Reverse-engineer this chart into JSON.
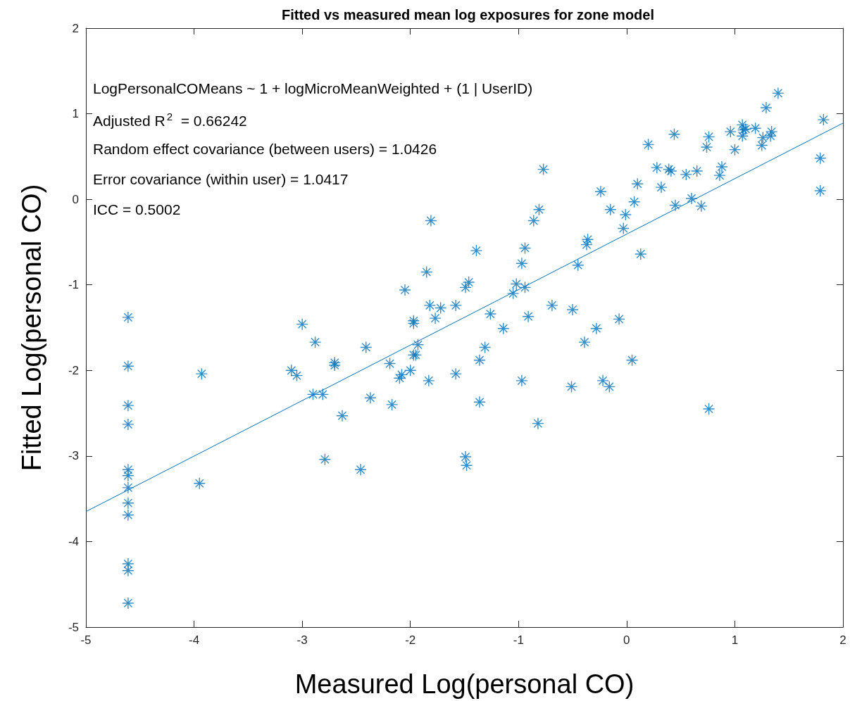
{
  "chart_data": {
    "type": "scatter",
    "title": "Fitted vs measured mean log exposures for zone model",
    "xlabel": "Measured Log(personal CO)",
    "ylabel": "Fitted Log(personal CO)",
    "annotations": [
      "LogPersonalCOMeans ~ 1 + logMicroMeanWeighted + (1 | UserID)",
      "Adjusted R$^{2}$  = 0.66242",
      "Random effect covariance (between users) = 1.0426",
      "Error covariance (within user) = 1.0417",
      "ICC = 0.5002"
    ],
    "xlim": [
      -5,
      2
    ],
    "xticks": [
      -5,
      -4,
      -3,
      -2,
      -1,
      0,
      1,
      2
    ],
    "ylim": [
      -5,
      2
    ],
    "yticks": [
      -5,
      -4,
      -3,
      -2,
      -1,
      0,
      1,
      2
    ],
    "grid": false,
    "marker": "cross",
    "series": [
      {
        "color": "#0072bd",
        "x": [
          -4.61,
          -4.61,
          -4.61,
          -4.61,
          -4.61,
          -4.61,
          -4.61,
          -4.61,
          -4.61,
          -4.61,
          -4.61,
          -4.61,
          -3.93,
          -3.95,
          -3.1,
          -3.05,
          -3.0,
          -2.9,
          -2.88,
          -2.81,
          -2.79,
          -2.7,
          -2.7,
          -2.63,
          -2.46,
          -2.41,
          -2.37,
          -2.19,
          -2.17,
          -2.1,
          -2.08,
          -2.05,
          -2.0,
          -1.97,
          -1.97,
          -1.97,
          -1.95,
          -1.93,
          -1.85,
          -1.83,
          -1.82,
          -1.81,
          -1.77,
          -1.72,
          -1.58,
          -1.58,
          -1.49,
          -1.49,
          -1.48,
          -1.46,
          -1.39,
          -1.36,
          -1.36,
          -1.31,
          -1.26,
          -1.14,
          -1.05,
          -1.02,
          -0.97,
          -0.97,
          -0.94,
          -0.94,
          -0.91,
          -0.86,
          -0.82,
          -0.81,
          -0.77,
          -0.69,
          -0.5,
          -0.51,
          -0.45,
          -0.39,
          -0.36,
          -0.37,
          -0.28,
          -0.24,
          -0.22,
          -0.16,
          -0.15,
          -0.07,
          -0.03,
          -0.01,
          0.05,
          0.07,
          0.1,
          0.13,
          0.2,
          0.28,
          0.32,
          0.39,
          0.41,
          0.44,
          0.45,
          0.55,
          0.6,
          0.65,
          0.69,
          0.74,
          0.76,
          0.76,
          0.86,
          0.88,
          0.96,
          1.0,
          1.07,
          1.07,
          1.08,
          1.1,
          1.19,
          1.25,
          1.26,
          1.29,
          1.33,
          1.34,
          1.4,
          1.79,
          1.79,
          1.82
        ],
        "values": [
          -1.38,
          -1.95,
          -2.41,
          -2.63,
          -3.16,
          -3.23,
          -3.37,
          -3.55,
          -3.69,
          -4.26,
          -4.34,
          -4.72,
          -2.04,
          -3.32,
          -2.0,
          -2.06,
          -1.46,
          -2.28,
          -1.67,
          -2.28,
          -3.04,
          -1.91,
          -1.94,
          -2.53,
          -3.16,
          -1.73,
          -2.32,
          -1.92,
          -2.4,
          -2.09,
          -2.05,
          -1.06,
          -2.0,
          -1.42,
          -1.45,
          -1.82,
          -1.82,
          -1.7,
          -0.85,
          -2.12,
          -1.24,
          -0.25,
          -1.39,
          -1.27,
          -1.24,
          -2.04,
          -1.03,
          -3.01,
          -3.11,
          -0.97,
          -0.6,
          -2.37,
          -1.88,
          -1.73,
          -1.34,
          -1.51,
          -1.1,
          -0.99,
          -0.75,
          -2.12,
          -0.57,
          -1.03,
          -1.37,
          -0.25,
          -2.62,
          -0.12,
          0.35,
          -1.24,
          -1.29,
          -2.19,
          -0.77,
          -1.67,
          -0.47,
          -0.53,
          -1.51,
          0.09,
          -2.12,
          -2.19,
          -0.12,
          -1.4,
          -0.34,
          -0.18,
          -1.88,
          -0.03,
          0.18,
          -0.64,
          0.64,
          0.37,
          0.14,
          0.35,
          0.33,
          0.76,
          -0.07,
          0.29,
          0.01,
          0.33,
          -0.08,
          0.61,
          0.73,
          -2.45,
          0.28,
          0.38,
          0.79,
          0.58,
          0.87,
          0.74,
          0.81,
          0.82,
          0.83,
          0.63,
          0.72,
          1.07,
          0.74,
          0.79,
          1.24,
          0.48,
          0.1,
          0.93
        ]
      },
      {
        "type": "line",
        "color": "#0072bd",
        "marker": "none",
        "line_style": "solid",
        "x": [
          -5,
          2
        ],
        "values": [
          -3.65,
          0.89
        ]
      }
    ]
  }
}
